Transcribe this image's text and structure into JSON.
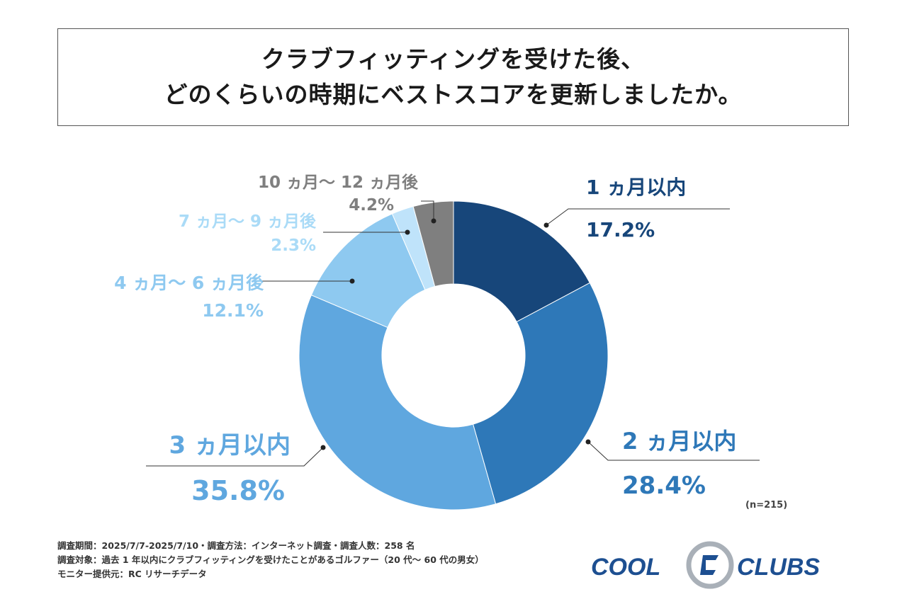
{
  "title": {
    "line1": "クラブフィッティングを受けた後、",
    "line2": "どのくらいの時期にベストスコアを更新しましたか。"
  },
  "chart_data": {
    "type": "pie",
    "donut": true,
    "title": "クラブフィッティングを受けた後、どのくらいの時期にベストスコアを更新しましたか。",
    "categories": [
      "1ヵ月以内",
      "2ヵ月以内",
      "3ヵ月以内",
      "4ヵ月〜6ヵ月後",
      "7ヵ月〜9ヵ月後",
      "10ヵ月〜12ヵ月後"
    ],
    "values": [
      17.2,
      28.4,
      35.8,
      12.1,
      2.3,
      4.2
    ],
    "value_labels": [
      "17.2%",
      "28.4%",
      "35.8%",
      "12.1%",
      "2.3%",
      "4.2%"
    ],
    "display_names": [
      "1 ヵ月以内",
      "2 ヵ月以内",
      "3 ヵ月以内",
      "4 ヵ月〜 6 ヵ月後",
      "7 ヵ月〜 9 ヵ月後",
      "10 ヵ月〜 12 ヵ月後"
    ],
    "colors": [
      "#17467a",
      "#2e78b8",
      "#5fa7df",
      "#8ec9f0",
      "#bfe3fa",
      "#7f7f7f"
    ],
    "label_colors": [
      "#17467a",
      "#2e78b8",
      "#5fa7df",
      "#8ec9f0",
      "#aadbf7",
      "#7f7f7f"
    ],
    "start": "12 o'clock",
    "direction": "clockwise"
  },
  "sample_size": "(n=215)",
  "footer": {
    "line1": "調査期間：2025/7/7-2025/7/10・調査方法：インターネット調査・調査人数：258 名",
    "line2": "調査対象：過去 1 年以内にクラブフィッティングを受けたことがあるゴルファー（20 代〜 60 代の男女）",
    "line3": "モニター提供元：RC リサーチデータ"
  },
  "logo": {
    "left_text": "COOL",
    "right_text": "CLUBS",
    "colors": {
      "text": "#1d4f91",
      "ring": "#a9b0b8"
    }
  }
}
